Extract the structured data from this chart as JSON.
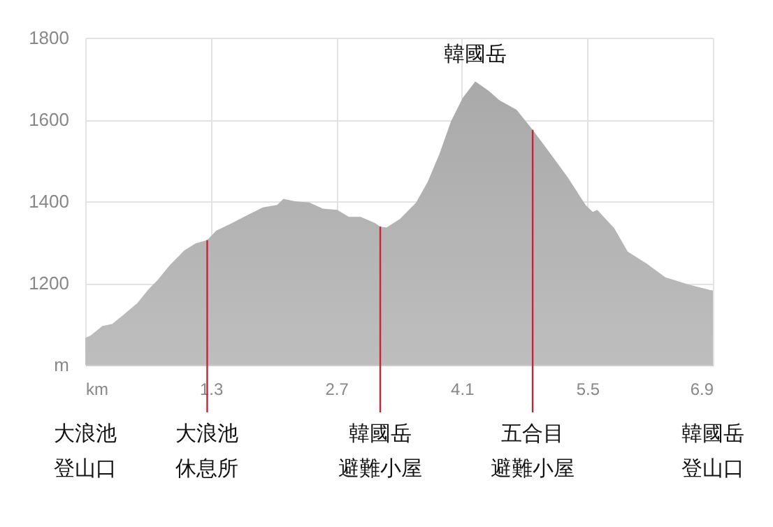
{
  "chart_data": {
    "type": "area",
    "xlabel": null,
    "series": [
      {
        "color": "#a9a9a9",
        "x": [
          -0.1,
          -0.04,
          0.09,
          0.2,
          0.33,
          0.48,
          0.61,
          0.71,
          0.84,
          1.0,
          1.13,
          1.26,
          1.36,
          1.52,
          1.67,
          1.88,
          2.04,
          2.11,
          2.24,
          2.4,
          2.55,
          2.71,
          2.84,
          2.97,
          3.13,
          3.19,
          3.26,
          3.41,
          3.59,
          3.72,
          3.85,
          3.98,
          4.11,
          4.25,
          4.4,
          4.52,
          4.71,
          4.89,
          5.07,
          5.28,
          5.48,
          5.56,
          5.61,
          5.8,
          5.95,
          6.16,
          6.37,
          6.62,
          6.87,
          6.9
        ],
        "values": [
          1066,
          1072,
          1095,
          1100,
          1123,
          1151,
          1186,
          1208,
          1243,
          1279,
          1297,
          1305,
          1328,
          1345,
          1362,
          1385,
          1391,
          1406,
          1400,
          1397,
          1382,
          1379,
          1362,
          1362,
          1347,
          1338,
          1336,
          1357,
          1397,
          1448,
          1516,
          1596,
          1653,
          1693,
          1670,
          1647,
          1624,
          1575,
          1522,
          1459,
          1391,
          1374,
          1379,
          1334,
          1277,
          1248,
          1214,
          1197,
          1183,
          1182
        ]
      }
    ],
    "xlim": [
      -0.1,
      6.9
    ],
    "xticks": [
      {
        "value": -0.1,
        "label": "km"
      },
      1.3,
      2.7,
      4.1,
      5.5,
      6.9
    ],
    "ylim": [
      1000,
      1800
    ],
    "yticks": [
      {
        "value": 1000,
        "label": "m"
      },
      1200,
      1400,
      1600,
      1800
    ],
    "grid": true,
    "ref_lines": [
      {
        "axis": "x",
        "value": 1.26,
        "label": "大浪池休息所",
        "color": "#cc2233"
      },
      {
        "axis": "x",
        "value": 3.19,
        "label": "韓國岳避難小屋",
        "color": "#cc2233"
      },
      {
        "axis": "x",
        "value": 4.89,
        "label": "五合目避難小屋",
        "color": "#cc2233"
      }
    ],
    "annotations": [
      {
        "text": "韓國岳",
        "x": 4.25,
        "y": 1693
      },
      {
        "text": "大浪池登山口",
        "x": -0.1
      },
      {
        "text": "韓國岳登山口",
        "x": 6.9
      }
    ]
  }
}
